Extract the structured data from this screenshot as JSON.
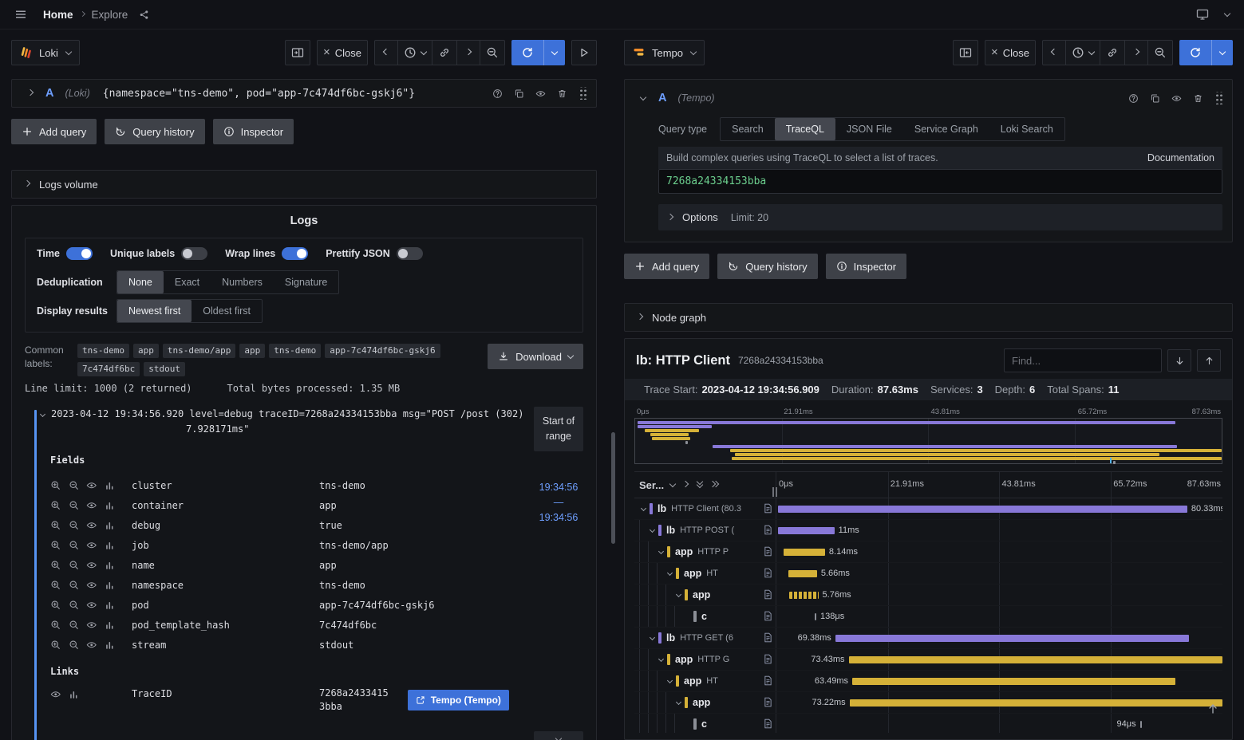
{
  "topbar": {
    "home": "Home",
    "page": "Explore"
  },
  "left_pane": {
    "datasource": {
      "name": "Loki"
    },
    "toolbar": {
      "close": "Close"
    },
    "query_row": {
      "ref": "A",
      "ds_hint": "(Loki)",
      "expression": "{namespace=\"tns-demo\", pod=\"app-7c474df6bc-gskj6\"}"
    },
    "actions": {
      "add_query": "Add query",
      "query_history": "Query history",
      "inspector": "Inspector"
    },
    "logs_volume_title": "Logs volume",
    "logs": {
      "title": "Logs",
      "toggles": [
        {
          "label": "Time",
          "on": true
        },
        {
          "label": "Unique labels",
          "on": false
        },
        {
          "label": "Wrap lines",
          "on": true
        },
        {
          "label": "Prettify JSON",
          "on": false
        }
      ],
      "dedup": {
        "label": "Deduplication",
        "options": [
          "None",
          "Exact",
          "Numbers",
          "Signature"
        ],
        "selected": "None"
      },
      "display": {
        "label": "Display results",
        "options": [
          "Newest first",
          "Oldest first"
        ],
        "selected": "Newest first"
      },
      "common_labels": {
        "label": "Common labels:",
        "tags": [
          "tns-demo",
          "app",
          "tns-demo/app",
          "app",
          "tns-demo",
          "app-7c474df6bc-gskj6",
          "7c474df6bc",
          "stdout"
        ]
      },
      "download": "Download",
      "line_limit": "Line limit: 1000 (2 returned)",
      "bytes_processed": "Total bytes processed:  1.35 MB",
      "log_row": {
        "text_line1": "2023-04-12 19:34:56.920 level=debug traceID=7268a24334153bba msg=\"POST /post (302)",
        "text_line2": "7.928171ms\""
      },
      "range_box": {
        "label": "Start of range",
        "from": "19:34:56",
        "sep": "—",
        "to": "19:34:56"
      },
      "fields_title": "Fields",
      "fields": [
        {
          "key": "cluster",
          "value": "tns-demo"
        },
        {
          "key": "container",
          "value": "app"
        },
        {
          "key": "debug",
          "value": "true"
        },
        {
          "key": "job",
          "value": "tns-demo/app"
        },
        {
          "key": "name",
          "value": "app"
        },
        {
          "key": "namespace",
          "value": "tns-demo"
        },
        {
          "key": "pod",
          "value": "app-7c474df6bc-gskj6"
        },
        {
          "key": "pod_template_hash",
          "value": "7c474df6bc"
        },
        {
          "key": "stream",
          "value": "stdout"
        }
      ],
      "links_title": "Links",
      "trace_link": {
        "key": "TraceID",
        "value_line1": "7268a2433415",
        "value_line2": "3bba",
        "button": "Tempo (Tempo)"
      },
      "older": "Older"
    }
  },
  "right_pane": {
    "datasource": {
      "name": "Tempo"
    },
    "toolbar": {
      "close": "Close"
    },
    "query_row": {
      "ref": "A",
      "ds_hint": "(Tempo)"
    },
    "query_type": {
      "label": "Query type",
      "options": [
        "Search",
        "TraceQL",
        "JSON File",
        "Service Graph",
        "Loki Search"
      ],
      "selected": "TraceQL"
    },
    "traceql": {
      "description": "Build complex queries using TraceQL to select a list of traces.",
      "documentation": "Documentation",
      "query": "7268a24334153bba"
    },
    "options_row": {
      "label": "Options",
      "limit": "Limit: 20"
    },
    "actions": {
      "add_query": "Add query",
      "query_history": "Query history",
      "inspector": "Inspector"
    },
    "node_graph_title": "Node graph",
    "trace": {
      "title": "lb: HTTP Client",
      "trace_id": "7268a24334153bba",
      "find_placeholder": "Find...",
      "meta": [
        {
          "label": "Trace Start:",
          "value": "2023-04-12 19:34:56.909"
        },
        {
          "label": "Duration:",
          "value": "87.63ms"
        },
        {
          "label": "Services:",
          "value": "3"
        },
        {
          "label": "Depth:",
          "value": "6"
        },
        {
          "label": "Total Spans:",
          "value": "11"
        }
      ],
      "minimap_ticks": [
        "0μs",
        "21.91ms",
        "43.81ms",
        "65.72ms",
        "87.63ms"
      ],
      "timeline_ticks": [
        "0μs",
        "21.91ms",
        "43.81ms",
        "65.72ms",
        "87.63ms"
      ],
      "service_column": "Ser...",
      "spans": [
        {
          "depth": 0,
          "service": "lb",
          "operation": "HTTP Client (80.3",
          "color": "#8878d8",
          "start_pct": 0.4,
          "width_pct": 91.7,
          "duration": "80.33ms",
          "label_pos": "after",
          "expandable": true
        },
        {
          "depth": 1,
          "service": "lb",
          "operation": "HTTP POST (",
          "color": "#8878d8",
          "start_pct": 0.4,
          "width_pct": 12.6,
          "duration": "11ms",
          "label_pos": "after",
          "expandable": true
        },
        {
          "depth": 2,
          "service": "app",
          "operation": "HTTP P",
          "color": "#d5b138",
          "start_pct": 1.6,
          "width_pct": 9.3,
          "duration": "8.14ms",
          "label_pos": "after",
          "expandable": true
        },
        {
          "depth": 3,
          "service": "app",
          "operation": "HT",
          "color": "#d5b138",
          "start_pct": 2.6,
          "width_pct": 6.5,
          "duration": "5.66ms",
          "label_pos": "after",
          "expandable": true
        },
        {
          "depth": 4,
          "service": "app",
          "operation": "",
          "color": "#d5b138",
          "start_pct": 2.8,
          "width_pct": 6.6,
          "duration": "5.76ms",
          "label_pos": "after",
          "expandable": true,
          "striped": true
        },
        {
          "depth": 5,
          "service": "c",
          "operation": "",
          "color": "#8b8e96",
          "start_pct": 8.6,
          "width_pct": 0.35,
          "duration": "138μs",
          "label_pos": "after",
          "expandable": false
        },
        {
          "depth": 1,
          "service": "lb",
          "operation": "HTTP GET (6",
          "color": "#8878d8",
          "start_pct": 13.2,
          "width_pct": 79.2,
          "duration": "69.38ms",
          "label_pos": "before",
          "expandable": true
        },
        {
          "depth": 2,
          "service": "app",
          "operation": "HTTP G",
          "color": "#d5b138",
          "start_pct": 16.2,
          "width_pct": 83.8,
          "duration": "73.43ms",
          "label_pos": "before",
          "expandable": true
        },
        {
          "depth": 3,
          "service": "app",
          "operation": "HT",
          "color": "#d5b138",
          "start_pct": 17.0,
          "width_pct": 72.4,
          "duration": "63.49ms",
          "label_pos": "before",
          "expandable": true
        },
        {
          "depth": 4,
          "service": "app",
          "operation": "",
          "color": "#d5b138",
          "start_pct": 16.4,
          "width_pct": 83.6,
          "duration": "73.22ms",
          "label_pos": "before",
          "expandable": true
        },
        {
          "depth": 5,
          "service": "c",
          "operation": "",
          "color": "#8b8e96",
          "start_pct": 81.5,
          "width_pct": 0.35,
          "duration": "94μs",
          "label_pos": "before",
          "expandable": false
        }
      ]
    }
  }
}
